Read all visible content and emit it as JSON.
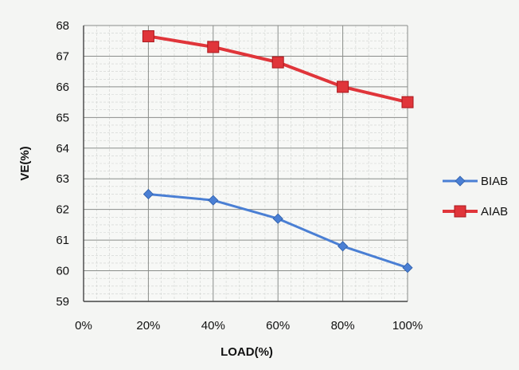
{
  "chart_data": {
    "type": "line",
    "categories": [
      "0%",
      "20%",
      "40%",
      "60%",
      "80%",
      "100%"
    ],
    "xlabel": "LOAD(%)",
    "ylabel": "VE(%)",
    "ylim": [
      59,
      68
    ],
    "y_ticks": [
      "59",
      "60",
      "61",
      "62",
      "63",
      "64",
      "65",
      "66",
      "67",
      "68"
    ],
    "grid": true,
    "legend_position": "right",
    "series": [
      {
        "name": "BIAB",
        "color": "#4a7fd4",
        "marker": "diamond",
        "values": [
          null,
          62.5,
          62.3,
          61.7,
          60.8,
          60.1
        ]
      },
      {
        "name": "AIAB",
        "color": "#e0353a",
        "marker": "square",
        "values": [
          null,
          67.65,
          67.3,
          66.8,
          66.0,
          65.5
        ]
      }
    ]
  }
}
